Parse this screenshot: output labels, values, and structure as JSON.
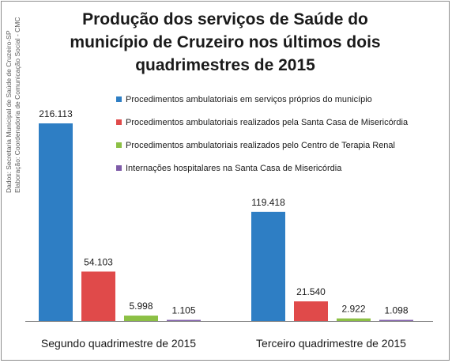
{
  "title_lines": [
    "Produção dos serviços de Saúde do",
    "município de Cruzeiro nos últimos dois",
    "quadrimestres de 2015"
  ],
  "side_note": [
    "Dados: Secretaria Municipal de Saúde de Cruzeiro-SP",
    "Elaboração: Coordenadoria de Comunicação Social - CMC"
  ],
  "chart_data": {
    "type": "bar",
    "title": "Produção dos serviços de Saúde do município de Cruzeiro nos últimos dois quadrimestres de 2015",
    "categories": [
      "Segundo quadrimestre de 2015",
      "Terceiro quadrimestre de 2015"
    ],
    "series": [
      {
        "name": "Procedimentos ambulatoriais em serviços próprios do município",
        "values": [
          216113,
          119418
        ],
        "labels": [
          "216.113",
          "119.418"
        ],
        "color": "#2e7ec4"
      },
      {
        "name": "Procedimentos ambulatoriais realizados pela Santa Casa de Misericórdia",
        "values": [
          54103,
          21540
        ],
        "labels": [
          "54.103",
          "21.540"
        ],
        "color": "#e04a4a"
      },
      {
        "name": "Procedimentos ambulatoriais realizados pelo Centro de Terapia Renal",
        "values": [
          5998,
          2922
        ],
        "labels": [
          "5.998",
          "2.922"
        ],
        "color": "#8cc045"
      },
      {
        "name": "Internações hospitalares na Santa Casa de Misericórdia",
        "values": [
          1105,
          1098
        ],
        "labels": [
          "1.105",
          "1.098"
        ],
        "color": "#7e5ba8"
      }
    ],
    "ylim": [
      0,
      216113
    ],
    "legend": "top-right",
    "grid": false
  }
}
